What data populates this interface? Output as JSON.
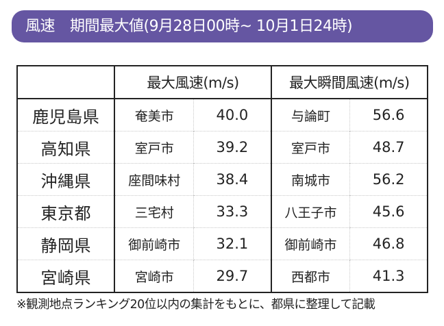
{
  "banner": {
    "label": "風速",
    "title": "期間最大値(9月28日00時~ 10月1日24時)",
    "color": "#6556a2"
  },
  "table": {
    "headers": {
      "prefecture": "",
      "max_wind": "最大風速(m/s)",
      "max_gust": "最大瞬間風速(m/s)"
    },
    "rows": [
      {
        "prefecture": "鹿児島県",
        "max_wind_place": "奄美市",
        "max_wind": "40.0",
        "max_gust_place": "与論町",
        "max_gust": "56.6"
      },
      {
        "prefecture": "高知県",
        "max_wind_place": "室戸市",
        "max_wind": "39.2",
        "max_gust_place": "室戸市",
        "max_gust": "48.7"
      },
      {
        "prefecture": "沖縄県",
        "max_wind_place": "座間味村",
        "max_wind": "38.4",
        "max_gust_place": "南城市",
        "max_gust": "56.2"
      },
      {
        "prefecture": "東京都",
        "max_wind_place": "三宅村",
        "max_wind": "33.3",
        "max_gust_place": "八王子市",
        "max_gust": "45.6"
      },
      {
        "prefecture": "静岡県",
        "max_wind_place": "御前崎市",
        "max_wind": "32.1",
        "max_gust_place": "御前崎市",
        "max_gust": "46.8"
      },
      {
        "prefecture": "宮崎県",
        "max_wind_place": "宮崎市",
        "max_wind": "29.7",
        "max_gust_place": "西都市",
        "max_gust": "41.3"
      }
    ]
  },
  "note": "※観測地点ランキング20位以内の集計をもとに、都県に整理して記載"
}
